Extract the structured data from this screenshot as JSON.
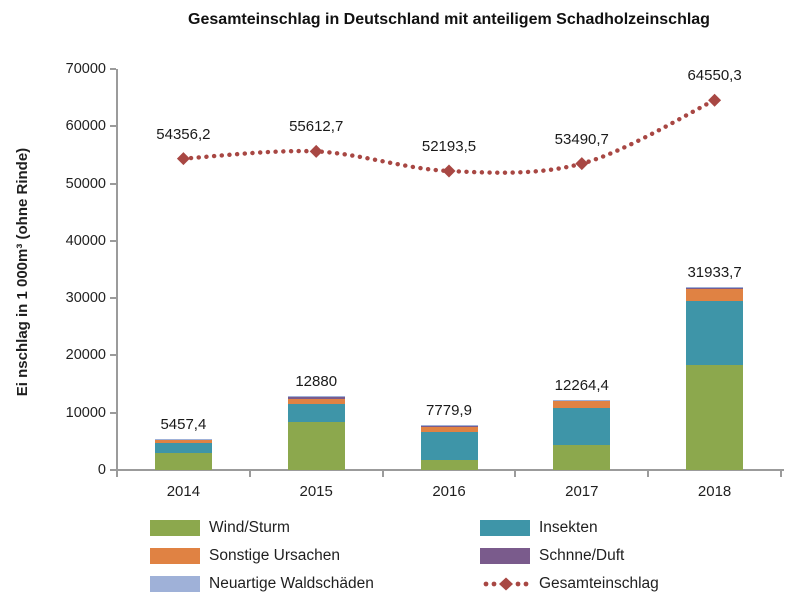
{
  "chart": {
    "title": "Gesamteinschlag in Deutschland mit anteiligem Schadholzeinschlag",
    "y_axis_label": "Ei nschlag in 1 000m³ (ohne Rinde)"
  },
  "chart_data": {
    "type": "bar",
    "subtype": "stacked bars with dotted line overlay",
    "categories": [
      "2014",
      "2015",
      "2016",
      "2017",
      "2018"
    ],
    "bar_series": [
      {
        "name": "Wind/Sturm",
        "color": "#8CA84D",
        "values": [
          2900,
          8300,
          1800,
          4450,
          18300
        ]
      },
      {
        "name": "Insekten",
        "color": "#3E95A8",
        "values": [
          1850,
          3200,
          4850,
          6350,
          11200
        ]
      },
      {
        "name": "Sonstige Ursachen",
        "color": "#E08243",
        "values": [
          450,
          900,
          1000,
          1300,
          2100
        ]
      },
      {
        "name": "Schnne/Duft",
        "color": "#7A5B8C",
        "values": [
          150,
          380,
          60,
          80,
          100
        ]
      },
      {
        "name": "Neuartige Waldschäden",
        "color": "#9FB1D8",
        "values": [
          107.4,
          100,
          69.9,
          84.4,
          233.7
        ]
      }
    ],
    "bar_totals": {
      "values": [
        5457.4,
        12880,
        7779.9,
        12264.4,
        31933.7
      ],
      "labels": [
        "5457,4",
        "12880",
        "7779,9",
        "12264,4",
        "31933,7"
      ]
    },
    "line_series": {
      "name": "Gesamteinschlag",
      "color": "#A84743",
      "style": "dotted line with diamond markers",
      "values": [
        54356.2,
        55612.7,
        52193.5,
        53490.7,
        64550.3
      ],
      "labels": [
        "54356,2",
        "55612,7",
        "52193,5",
        "53490,7",
        "64550,3"
      ]
    },
    "ylim": [
      0,
      70000
    ],
    "yticks": [
      0,
      10000,
      20000,
      30000,
      40000,
      50000,
      60000,
      70000
    ],
    "ytick_labels": [
      "0",
      "10000",
      "20000",
      "30000",
      "40000",
      "50000",
      "60000",
      "70000"
    ],
    "grid": false,
    "legend_position": "bottom",
    "legend": [
      {
        "label": "Wind/Sturm",
        "marker": "square",
        "color": "#8CA84D",
        "column": 0,
        "row": 0
      },
      {
        "label": "Insekten",
        "marker": "square",
        "color": "#3E95A8",
        "column": 1,
        "row": 0
      },
      {
        "label": "Sonstige Ursachen",
        "marker": "square",
        "color": "#E08243",
        "column": 0,
        "row": 1
      },
      {
        "label": "Schnne/Duft",
        "marker": "square",
        "color": "#7A5B8C",
        "column": 1,
        "row": 1
      },
      {
        "label": "Neuartige Waldschäden",
        "marker": "square",
        "color": "#9FB1D8",
        "column": 0,
        "row": 2
      },
      {
        "label": "Gesamteinschlag",
        "marker": "dotted-line-diamond",
        "color": "#A84743",
        "column": 1,
        "row": 2
      }
    ]
  },
  "colors": {
    "axis": "#9B9B9B",
    "text": "#1F1F1F",
    "background": "#FFFFFF"
  }
}
